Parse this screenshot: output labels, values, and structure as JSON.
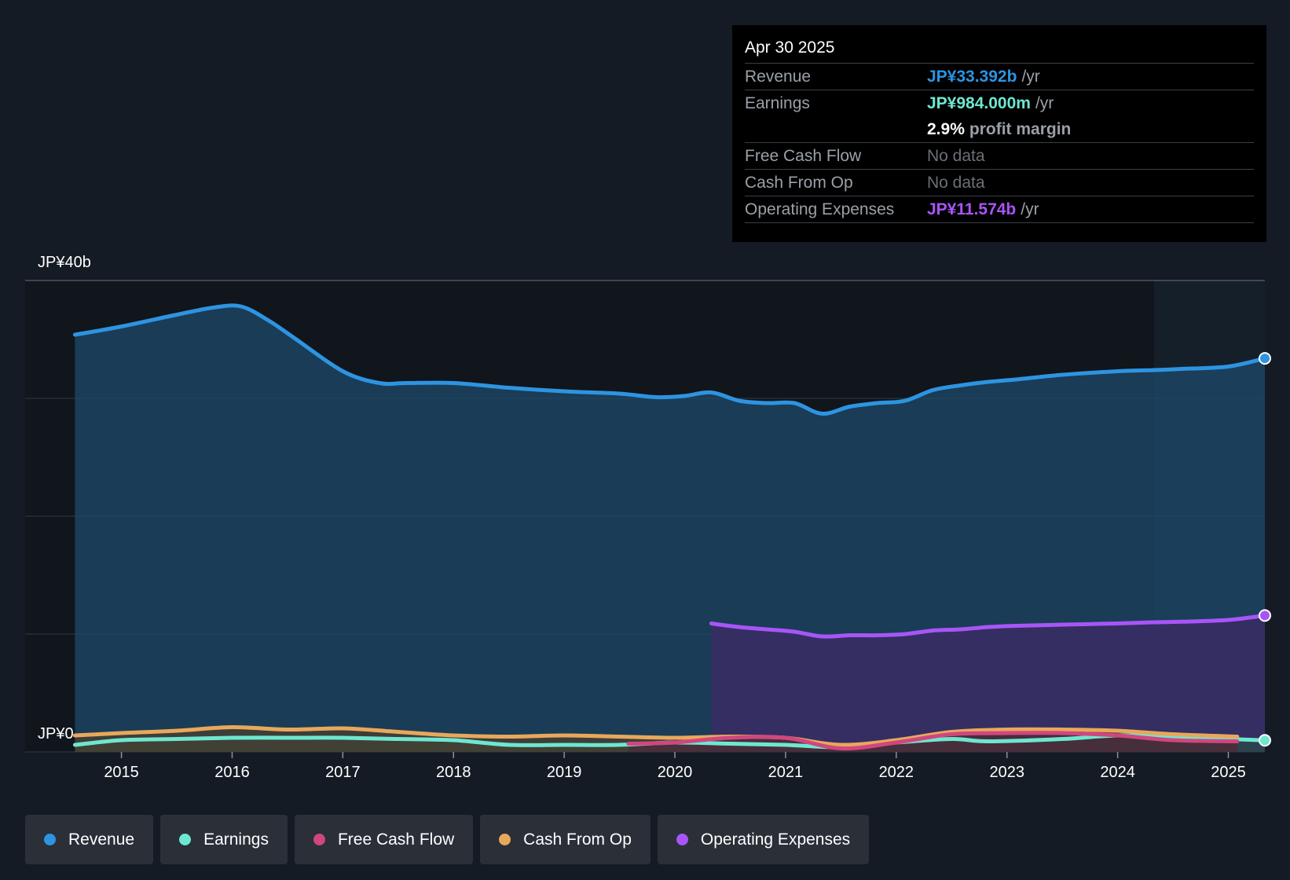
{
  "tooltip": {
    "date": "Apr 30 2025",
    "rows": [
      {
        "label": "Revenue",
        "value": "JP¥33.392b",
        "unit": "/yr",
        "color": "#2d94e1"
      },
      {
        "label": "Earnings",
        "value": "JP¥984.000m",
        "unit": "/yr",
        "color": "#6ee7d0"
      },
      {
        "label": "",
        "value": "2.9%",
        "unit": "profit margin",
        "color": "#ffffff"
      },
      {
        "label": "Free Cash Flow",
        "value": "No data",
        "unit": "",
        "color": "#6b7078"
      },
      {
        "label": "Cash From Op",
        "value": "No data",
        "unit": "",
        "color": "#6b7078"
      },
      {
        "label": "Operating Expenses",
        "value": "JP¥11.574b",
        "unit": "/yr",
        "color": "#a855f7"
      }
    ]
  },
  "legend": [
    {
      "label": "Revenue",
      "color": "#2d94e1"
    },
    {
      "label": "Earnings",
      "color": "#6ee7d0"
    },
    {
      "label": "Free Cash Flow",
      "color": "#d1467f"
    },
    {
      "label": "Cash From Op",
      "color": "#e8a85b"
    },
    {
      "label": "Operating Expenses",
      "color": "#a855f7"
    }
  ],
  "chart_data": {
    "type": "area",
    "y_top_label": "JP¥40b",
    "y_bottom_label": "JP¥0",
    "ylim": [
      0,
      40
    ],
    "xlim": [
      2014.13,
      2025.33
    ],
    "highlight_start": 2024.33,
    "x_ticks": [
      "2015",
      "2016",
      "2017",
      "2018",
      "2019",
      "2020",
      "2021",
      "2022",
      "2023",
      "2024",
      "2025"
    ],
    "gridlines": [
      0,
      10,
      20,
      30,
      40
    ],
    "series": [
      {
        "name": "Revenue",
        "color": "#2d94e1",
        "fill": "#1e4a6b",
        "x": [
          2014.58,
          2015.0,
          2015.5,
          2015.83,
          2016.08,
          2016.33,
          2016.58,
          2017.0,
          2017.33,
          2017.58,
          2018.0,
          2018.5,
          2019.0,
          2019.5,
          2019.83,
          2020.08,
          2020.33,
          2020.58,
          2020.83,
          2021.08,
          2021.33,
          2021.58,
          2021.83,
          2022.08,
          2022.33,
          2022.58,
          2022.83,
          2023.08,
          2023.5,
          2024.0,
          2024.33,
          2024.58,
          2025.0,
          2025.33
        ],
        "y": [
          35.4,
          36.1,
          37.1,
          37.7,
          37.8,
          36.6,
          35.0,
          32.3,
          31.3,
          31.3,
          31.3,
          30.9,
          30.6,
          30.4,
          30.1,
          30.2,
          30.5,
          29.8,
          29.6,
          29.6,
          28.7,
          29.3,
          29.6,
          29.8,
          30.7,
          31.1,
          31.4,
          31.6,
          32.0,
          32.3,
          32.4,
          32.5,
          32.7,
          33.392
        ]
      },
      {
        "name": "Operating Expenses",
        "color": "#a855f7",
        "fill": "#3d2a66",
        "x": [
          2020.33,
          2020.58,
          2020.83,
          2021.08,
          2021.33,
          2021.58,
          2021.83,
          2022.08,
          2022.33,
          2022.58,
          2022.83,
          2023.08,
          2023.5,
          2024.0,
          2024.33,
          2024.58,
          2025.0,
          2025.33
        ],
        "y": [
          10.9,
          10.6,
          10.4,
          10.2,
          9.8,
          9.9,
          9.9,
          10.0,
          10.3,
          10.4,
          10.6,
          10.7,
          10.8,
          10.9,
          11.0,
          11.05,
          11.2,
          11.574
        ]
      },
      {
        "name": "Earnings",
        "color": "#6ee7d0",
        "fill": "#2a4a48",
        "x": [
          2014.58,
          2015.0,
          2015.5,
          2016.0,
          2016.5,
          2017.0,
          2017.5,
          2018.0,
          2018.5,
          2019.0,
          2019.5,
          2020.0,
          2020.5,
          2021.0,
          2021.5,
          2022.0,
          2022.5,
          2022.83,
          2023.5,
          2024.0,
          2024.5,
          2025.0,
          2025.33
        ],
        "y": [
          0.6,
          1.0,
          1.1,
          1.2,
          1.2,
          1.2,
          1.1,
          1.0,
          0.6,
          0.6,
          0.6,
          0.8,
          0.7,
          0.6,
          0.4,
          0.8,
          1.1,
          0.9,
          1.1,
          1.4,
          1.3,
          1.1,
          0.984
        ]
      },
      {
        "name": "Cash From Op",
        "color": "#e8a85b",
        "fill": "#4a3f2e",
        "x": [
          2014.58,
          2015.0,
          2015.5,
          2016.0,
          2016.5,
          2017.0,
          2017.5,
          2018.0,
          2018.5,
          2019.0,
          2019.5,
          2020.0,
          2020.5,
          2021.0,
          2021.5,
          2022.0,
          2022.5,
          2023.0,
          2023.5,
          2024.0,
          2024.5,
          2025.08
        ],
        "y": [
          1.4,
          1.6,
          1.8,
          2.1,
          1.9,
          2.0,
          1.7,
          1.4,
          1.3,
          1.4,
          1.3,
          1.2,
          1.3,
          1.2,
          0.6,
          1.0,
          1.7,
          1.9,
          1.9,
          1.8,
          1.5,
          1.3
        ]
      },
      {
        "name": "Free Cash Flow",
        "color": "#d1467f",
        "fill": "#4a2a3e",
        "x": [
          2019.58,
          2020.0,
          2020.5,
          2021.0,
          2021.5,
          2022.0,
          2022.5,
          2023.0,
          2023.5,
          2024.0,
          2024.5,
          2025.08
        ],
        "y": [
          0.7,
          0.8,
          1.2,
          1.2,
          0.3,
          0.8,
          1.5,
          1.6,
          1.6,
          1.4,
          1.0,
          0.9
        ]
      }
    ]
  }
}
